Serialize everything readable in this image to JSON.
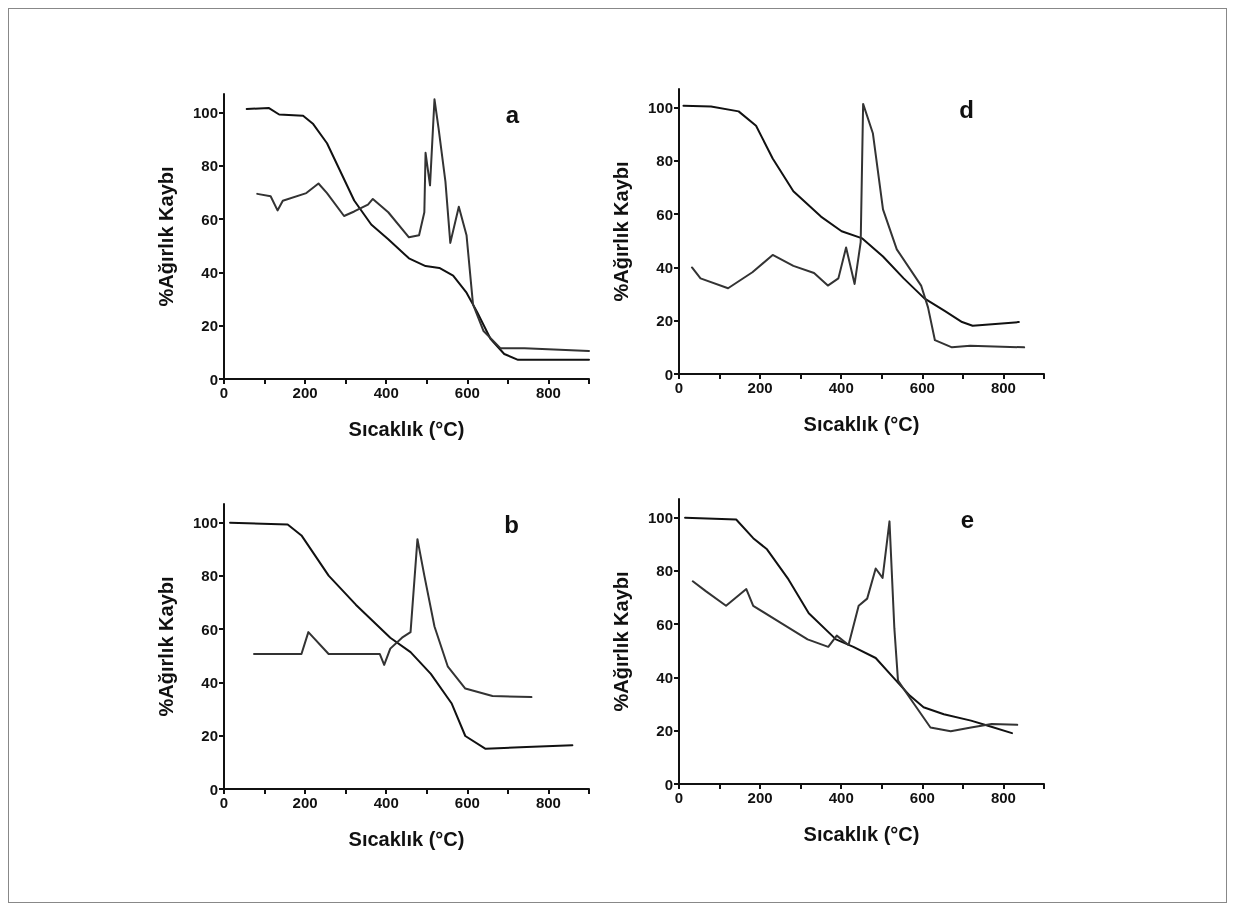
{
  "chart_data": [
    {
      "type": "line",
      "annotations": [
        "a"
      ],
      "xlabel": "Sıcaklık (°C)",
      "ylabel": "%Ağırlık Kaybı",
      "xlim": [
        0,
        900
      ],
      "ylim": [
        0,
        107
      ],
      "xticks": [
        0,
        {
          "value": 100,
          "label": null
        },
        200,
        {
          "value": 300,
          "label": null
        },
        400,
        {
          "value": 500,
          "label": null
        },
        600,
        {
          "value": 700,
          "label": null
        },
        800,
        {
          "value": 900,
          "label": null
        }
      ],
      "yticks": [
        0,
        20,
        40,
        60,
        80,
        100
      ],
      "grid": false,
      "marker": "none",
      "line_style": "solid",
      "series": [
        {
          "color": "#111111",
          "x": [
            56,
            111,
            136,
            195,
            220,
            254,
            321,
            363,
            405,
            456,
            497,
            531,
            565,
            598,
            624,
            657,
            691,
            725,
            900
          ],
          "values": [
            101.4,
            101.7,
            99.3,
            98.8,
            95.7,
            88.5,
            67,
            58,
            52.5,
            45.3,
            42.4,
            41.7,
            38.8,
            32.4,
            25.2,
            15.1,
            9.4,
            7.2,
            7.2
          ]
        },
        {
          "color": "#333333",
          "x": [
            82,
            115,
            132,
            145,
            203,
            233,
            254,
            296,
            321,
            355,
            367,
            405,
            456,
            481,
            494,
            497,
            508,
            519,
            529,
            546,
            558,
            579,
            598,
            614,
            640,
            682,
            741,
            900
          ],
          "values": [
            69.5,
            68.6,
            63.3,
            66.9,
            69.8,
            73.4,
            69.8,
            61.2,
            62.9,
            65.5,
            67.6,
            62.6,
            53.2,
            54,
            62.6,
            84.9,
            72.7,
            105,
            94.2,
            74.1,
            51.1,
            64.7,
            54,
            28,
            18,
            11.5,
            11.5,
            10.5
          ]
        }
      ]
    },
    {
      "type": "line",
      "annotations": [
        "d"
      ],
      "xlabel": "Sıcaklık (°C)",
      "ylabel": "%Ağırlık Kaybı",
      "xlim": [
        0,
        900
      ],
      "ylim": [
        0,
        107
      ],
      "xticks": [
        0,
        {
          "value": 100,
          "label": null
        },
        200,
        {
          "value": 300,
          "label": null
        },
        400,
        {
          "value": 500,
          "label": null
        },
        600,
        {
          "value": 700,
          "label": null
        },
        800,
        {
          "value": 900,
          "label": null
        }
      ],
      "yticks": [
        0,
        20,
        40,
        60,
        80,
        100
      ],
      "grid": false,
      "marker": "none",
      "line_style": "solid",
      "series": [
        {
          "color": "#111111",
          "x": [
            11,
            79,
            147,
            190,
            231,
            282,
            350,
            401,
            452,
            503,
            554,
            605,
            656,
            698,
            724,
            838
          ],
          "values": [
            100.7,
            100.4,
            98.6,
            93.2,
            80.9,
            68.6,
            59.1,
            53.6,
            50.9,
            44.1,
            35.9,
            28.4,
            23.6,
            19.5,
            18.1,
            19.5
          ]
        },
        {
          "color": "#333333",
          "x": [
            32,
            53,
            121,
            181,
            231,
            282,
            333,
            367,
            393,
            412,
            433,
            448,
            454,
            478,
            503,
            537,
            597,
            614,
            631,
            673,
            718,
            851
          ],
          "values": [
            40,
            35.9,
            32.2,
            38.2,
            44.7,
            40.6,
            37.9,
            33.2,
            35.9,
            47.5,
            33.8,
            49.5,
            101.4,
            90.4,
            61.8,
            46.8,
            33.2,
            25,
            12.7,
            10,
            10.6,
            10
          ]
        }
      ]
    },
    {
      "type": "line",
      "annotations": [
        "b"
      ],
      "xlabel": "Sıcaklık (°C)",
      "ylabel": "%Ağırlık Kaybı",
      "xlim": [
        0,
        900
      ],
      "ylim": [
        0,
        107
      ],
      "xticks": [
        0,
        {
          "value": 100,
          "label": null
        },
        200,
        {
          "value": 300,
          "label": null
        },
        400,
        {
          "value": 500,
          "label": null
        },
        600,
        {
          "value": 700,
          "label": null
        },
        800,
        {
          "value": 900,
          "label": null
        }
      ],
      "yticks": [
        0,
        20,
        40,
        60,
        80,
        100
      ],
      "grid": false,
      "marker": "none",
      "line_style": "solid",
      "series": [
        {
          "color": "#111111",
          "x": [
            15,
            157,
            191,
            258,
            325,
            410,
            460,
            510,
            561,
            595,
            645,
            746,
            859
          ],
          "values": [
            100,
            99.3,
            95.2,
            80.1,
            69.2,
            56.8,
            51.4,
            43.2,
            32.2,
            19.9,
            15.1,
            15.8,
            16.4
          ]
        },
        {
          "color": "#333333",
          "x": [
            74,
            191,
            208,
            258,
            384,
            395,
            410,
            439,
            460,
            477,
            494,
            519,
            552,
            595,
            662,
            758
          ],
          "values": [
            50.7,
            50.7,
            58.9,
            50.7,
            50.7,
            46.6,
            52.7,
            56.8,
            58.9,
            93.8,
            80.1,
            61,
            45.9,
            37.7,
            34.9,
            34.5
          ]
        }
      ]
    },
    {
      "type": "line",
      "annotations": [
        "e"
      ],
      "xlabel": "Sıcaklık (°C)",
      "ylabel": "%Ağırlık Kaybı",
      "xlim": [
        0,
        900
      ],
      "ylim": [
        0,
        107
      ],
      "xticks": [
        0,
        {
          "value": 100,
          "label": null
        },
        200,
        {
          "value": 300,
          "label": null
        },
        400,
        {
          "value": 500,
          "label": null
        },
        600,
        {
          "value": 700,
          "label": null
        },
        800,
        {
          "value": 900,
          "label": null
        }
      ],
      "yticks": [
        0,
        20,
        40,
        60,
        80,
        100
      ],
      "grid": false,
      "marker": "none",
      "line_style": "solid",
      "series": [
        {
          "color": "#111111",
          "x": [
            15,
            141,
            183,
            217,
            270,
            320,
            387,
            430,
            485,
            527,
            569,
            603,
            653,
            720,
            762,
            821
          ],
          "values": [
            100,
            99.3,
            92.3,
            88.1,
            76.8,
            64.1,
            54.3,
            51.5,
            47.3,
            40.2,
            33.2,
            28.8,
            26.2,
            23.8,
            21.9,
            19.1
          ]
        },
        {
          "color": "#333333",
          "x": [
            34,
            66,
            116,
            166,
            183,
            250,
            317,
            368,
            389,
            418,
            443,
            464,
            485,
            502,
            519,
            531,
            540,
            578,
            620,
            670,
            720,
            771,
            834
          ],
          "values": [
            76.1,
            72.4,
            66.9,
            73.2,
            66.9,
            60.6,
            54.3,
            51.5,
            55.7,
            52.2,
            66.9,
            69.6,
            80.9,
            77.4,
            98.6,
            58.5,
            38.8,
            30.4,
            21.2,
            19.8,
            21.2,
            22.5,
            22.2
          ]
        }
      ]
    }
  ]
}
